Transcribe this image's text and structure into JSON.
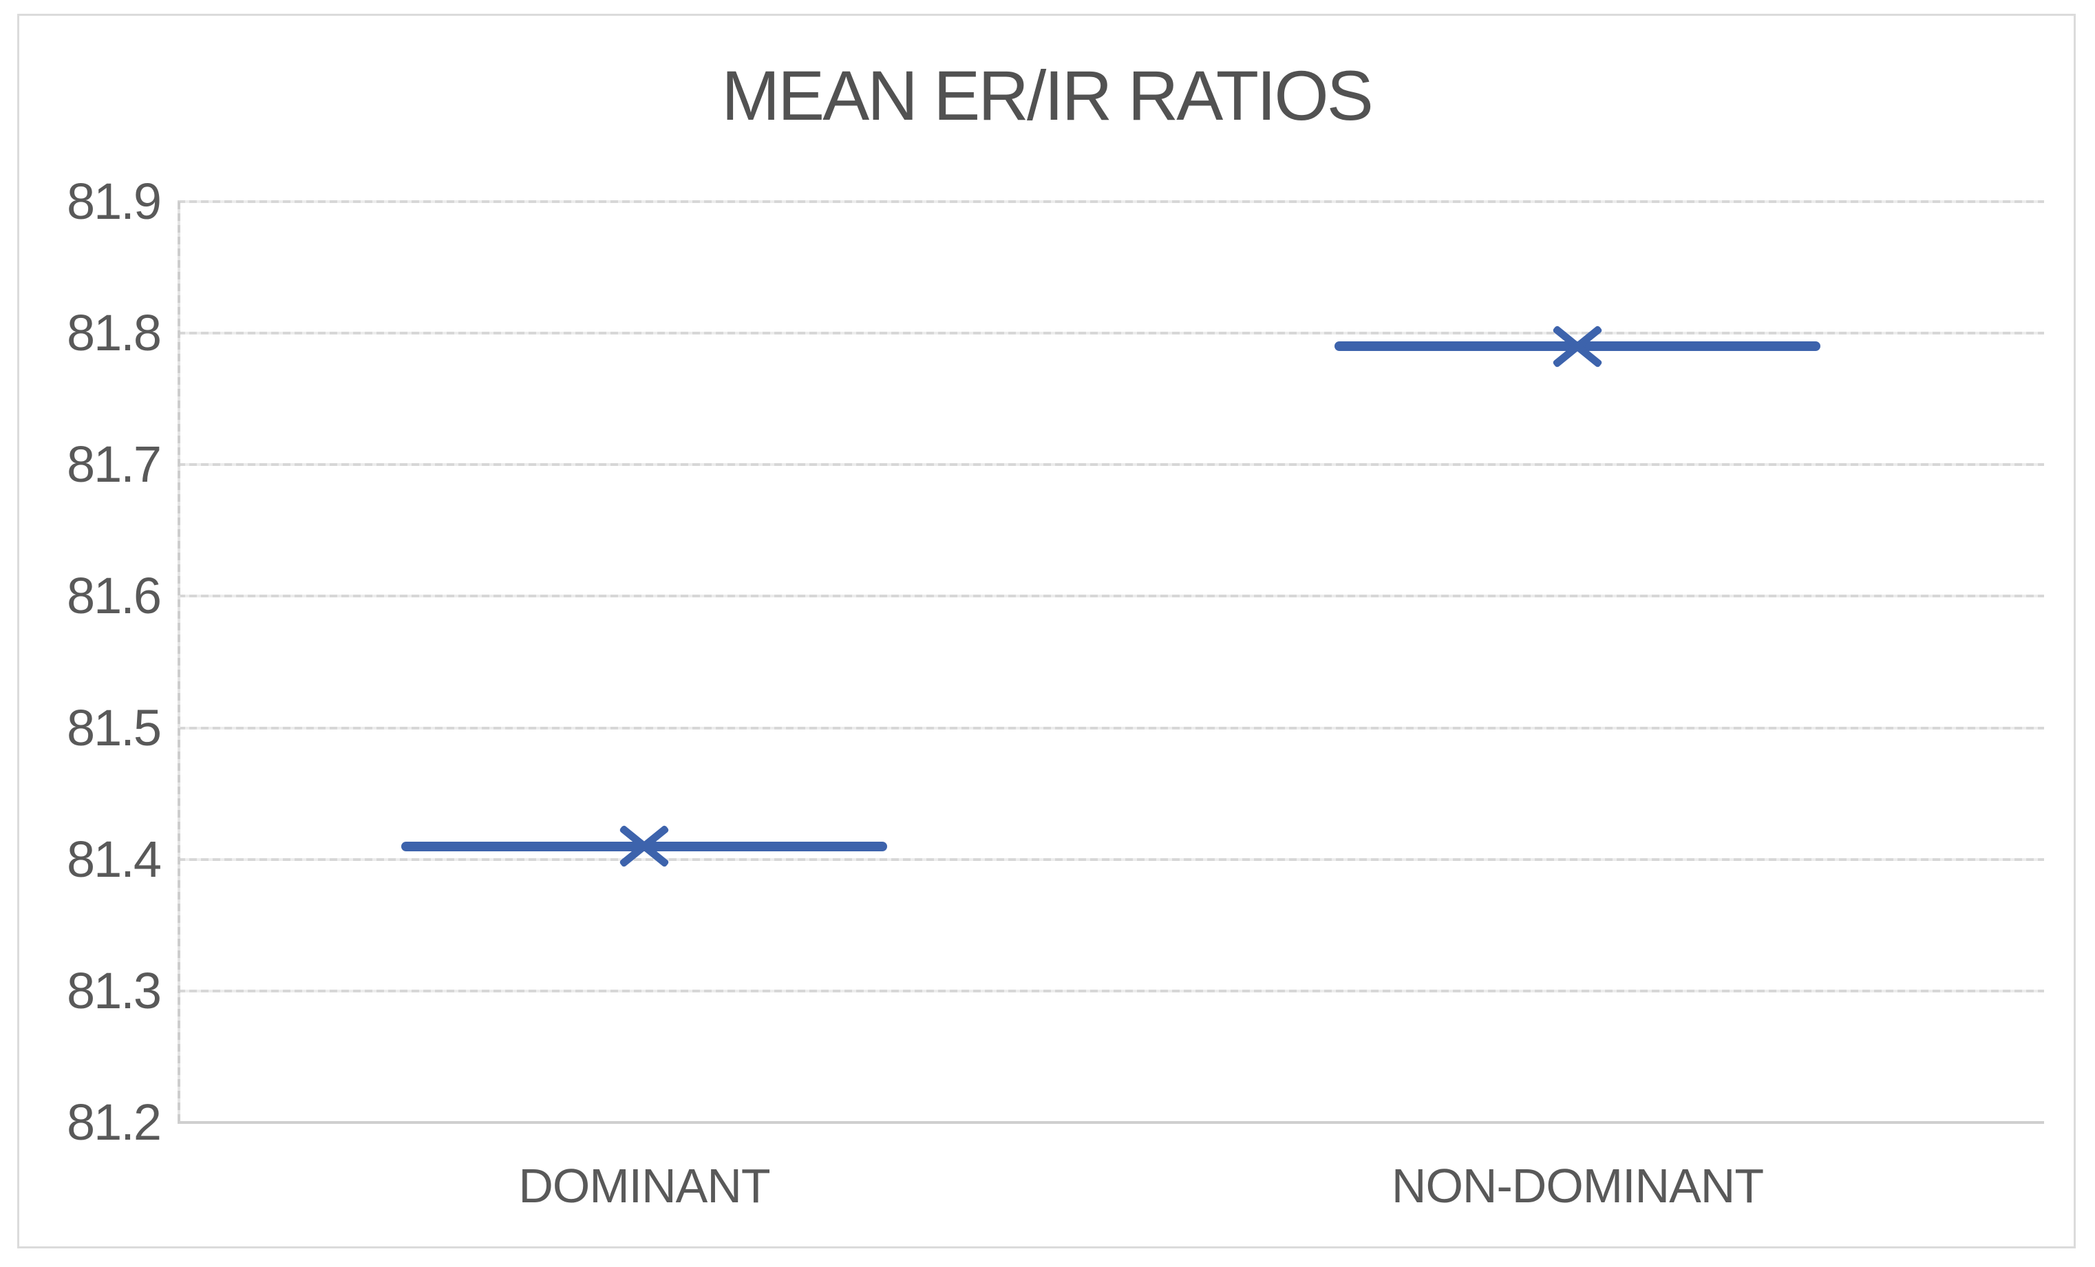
{
  "chart_data": {
    "type": "line",
    "title": "MEAN ER/IR RATIOS",
    "categories": [
      "DOMINANT",
      "NON-DOMINANT"
    ],
    "values": [
      81.41,
      81.79
    ],
    "ylim": [
      81.2,
      81.9
    ],
    "ytick_labels": [
      "81.2",
      "81.3",
      "81.4",
      "81.5",
      "81.6",
      "81.7",
      "81.8",
      "81.9"
    ],
    "xlabel": "",
    "ylabel": "",
    "grid": true,
    "legend_position": "none",
    "marker_style": "x",
    "colors": {
      "series": "#3D63AC",
      "gridline": "#D9D9D9",
      "axis_line": "#CFCFCF",
      "tick_label_text": "#595959",
      "title_text": "#525252",
      "frame_border": "#DBDBDB",
      "background": "#FFFFFF"
    }
  }
}
